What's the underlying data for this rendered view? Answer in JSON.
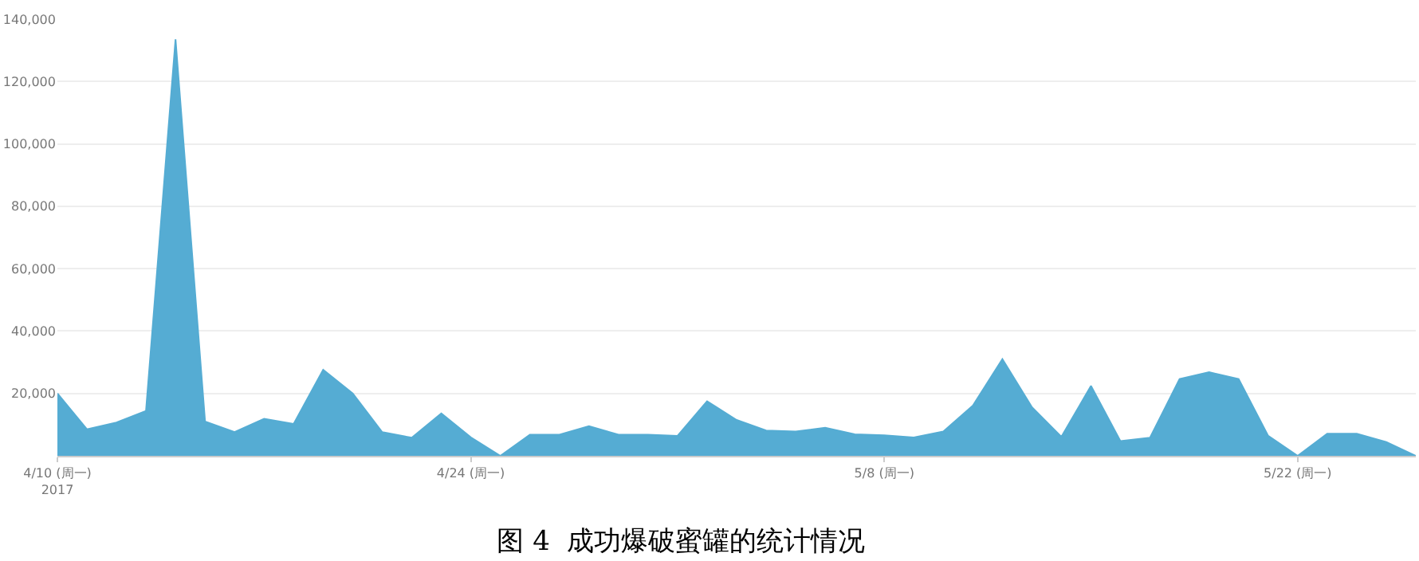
{
  "chart_data": {
    "type": "area",
    "title": "图 4  成功爆破蜜罐的统计情况",
    "x": [
      "2017-04-10",
      "2017-04-11",
      "2017-04-12",
      "2017-04-13",
      "2017-04-14",
      "2017-04-15",
      "2017-04-16",
      "2017-04-17",
      "2017-04-18",
      "2017-04-19",
      "2017-04-20",
      "2017-04-21",
      "2017-04-22",
      "2017-04-23",
      "2017-04-24",
      "2017-04-25",
      "2017-04-26",
      "2017-04-27",
      "2017-04-28",
      "2017-04-29",
      "2017-04-30",
      "2017-05-01",
      "2017-05-02",
      "2017-05-03",
      "2017-05-04",
      "2017-05-05",
      "2017-05-06",
      "2017-05-07",
      "2017-05-08",
      "2017-05-09",
      "2017-05-10",
      "2017-05-11",
      "2017-05-12",
      "2017-05-13",
      "2017-05-14",
      "2017-05-15",
      "2017-05-16",
      "2017-05-17",
      "2017-05-18",
      "2017-05-19",
      "2017-05-20",
      "2017-05-21",
      "2017-05-22",
      "2017-05-23",
      "2017-05-24",
      "2017-05-25",
      "2017-05-26"
    ],
    "series": [
      {
        "color": "#55acd3",
        "values": [
          20000,
          8500,
          10700,
          14400,
          133500,
          11000,
          7600,
          11900,
          10200,
          27600,
          20000,
          7600,
          5800,
          13600,
          5900,
          0,
          6800,
          6800,
          9500,
          6800,
          6800,
          6400,
          17500,
          11500,
          8100,
          7800,
          9000,
          6900,
          6600,
          5900,
          7800,
          16100,
          31000,
          15600,
          6100,
          22400,
          4700,
          5800,
          24600,
          26800,
          24600,
          6400,
          0,
          7100,
          7100,
          4400,
          0
        ]
      }
    ],
    "xlim": [
      "2017-04-10",
      "2017-05-26"
    ],
    "xticks": [
      {
        "value": "2017-04-10",
        "label": "4/10 (周一)\n2017"
      },
      {
        "value": "2017-04-24",
        "label": "4/24 (周一)"
      },
      {
        "value": "2017-05-08",
        "label": "5/8 (周一)"
      },
      {
        "value": "2017-05-22",
        "label": "5/22 (周一)"
      }
    ],
    "ylim": [
      0,
      140000
    ],
    "yticks": [
      {
        "value": 20000,
        "label": "20,000"
      },
      {
        "value": 40000,
        "label": "40,000"
      },
      {
        "value": 60000,
        "label": "60,000"
      },
      {
        "value": 80000,
        "label": "80,000"
      },
      {
        "value": 100000,
        "label": "100,000"
      },
      {
        "value": 120000,
        "label": "120,000"
      },
      {
        "value": 140000,
        "label": "140,000"
      }
    ],
    "grid": "y"
  }
}
